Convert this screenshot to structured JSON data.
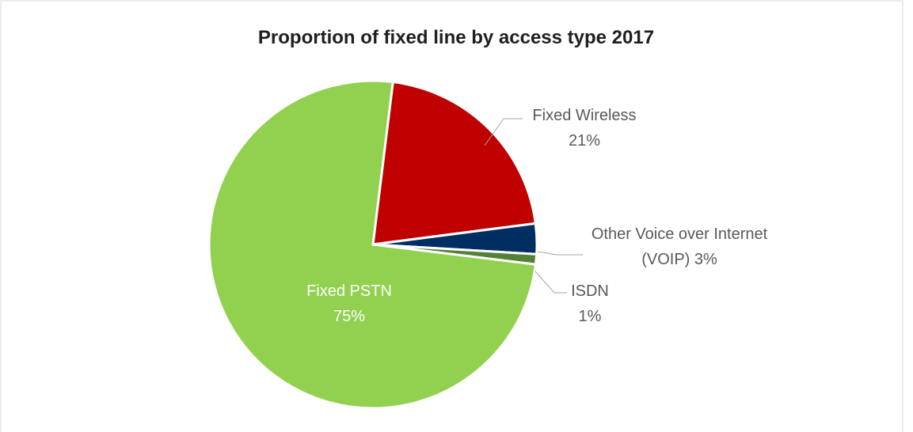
{
  "chart_data": {
    "type": "pie",
    "title": "Proportion of fixed line by access type 2017",
    "slices": [
      {
        "name": "Fixed Wireless",
        "value": 21,
        "value_label": "21%",
        "color": "#c00000"
      },
      {
        "name": "Other Voice over Internet",
        "name_line2": "(VOIP) 3%",
        "value": 3,
        "value_label": "3%",
        "color": "#002d62"
      },
      {
        "name": "ISDN",
        "value": 1,
        "value_label": "1%",
        "color": "#548235"
      },
      {
        "name": "Fixed PSTN",
        "value": 75,
        "value_label": "75%",
        "color": "#92d050"
      }
    ],
    "start_angle_deg": 7,
    "legend": "none",
    "data_labels": true
  }
}
